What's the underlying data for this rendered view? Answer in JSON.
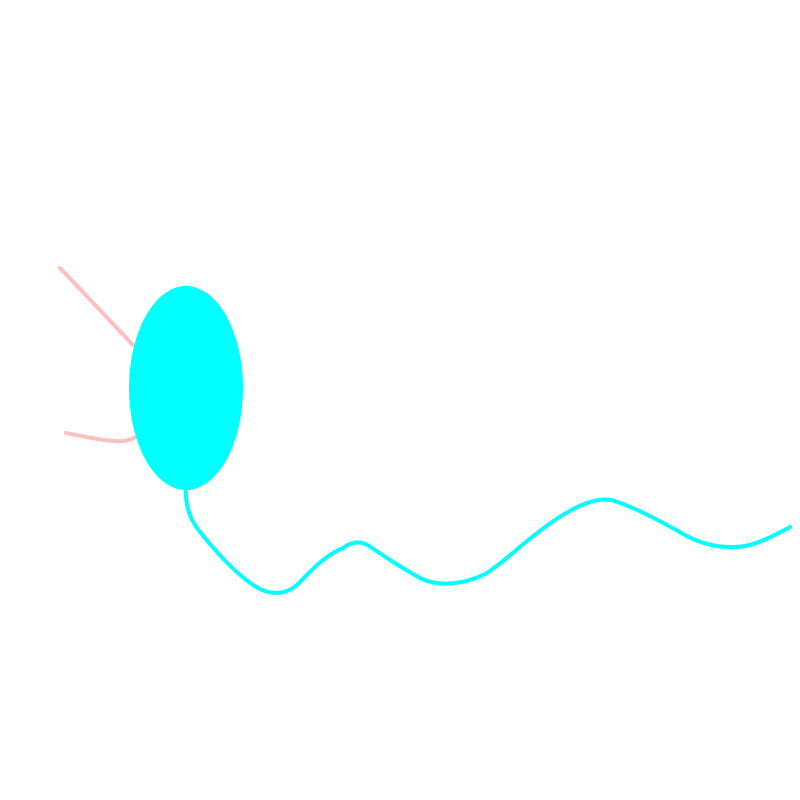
{
  "drawing": {
    "background_color": "#ffffff",
    "balloon": {
      "color": "#00ffff"
    },
    "string": {
      "color": "#00ffff"
    },
    "side_strokes": {
      "color": "#ffbfbf"
    }
  }
}
